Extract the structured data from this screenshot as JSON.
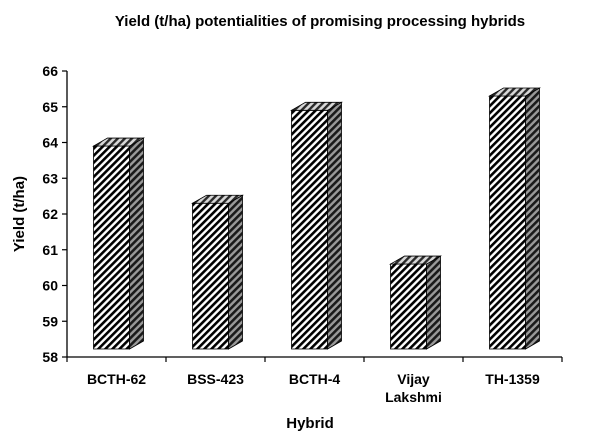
{
  "chart_data": {
    "type": "bar",
    "title": "Yield (t/ha) potentialities of promising processing hybrids",
    "xlabel": "Hybrid",
    "ylabel": "Yield (t/ha)",
    "categories": [
      [
        "BCTH-62"
      ],
      [
        "BSS-423"
      ],
      [
        "BCTH-4"
      ],
      [
        "Vijay",
        "Lakshmi"
      ],
      [
        "TH-1359"
      ]
    ],
    "values": [
      63.9,
      62.3,
      64.9,
      60.6,
      65.3
    ],
    "ylim": [
      58,
      66
    ],
    "yticks": [
      "58",
      "59",
      "60",
      "61",
      "62",
      "63",
      "64",
      "65",
      "66"
    ],
    "grid": false,
    "legend": "none",
    "bar_style": "3d-hatched",
    "colors": {
      "bar_face": "#ffffff",
      "hatch": "#000000",
      "side": "#4a4a4a",
      "axis": "#000000"
    }
  }
}
